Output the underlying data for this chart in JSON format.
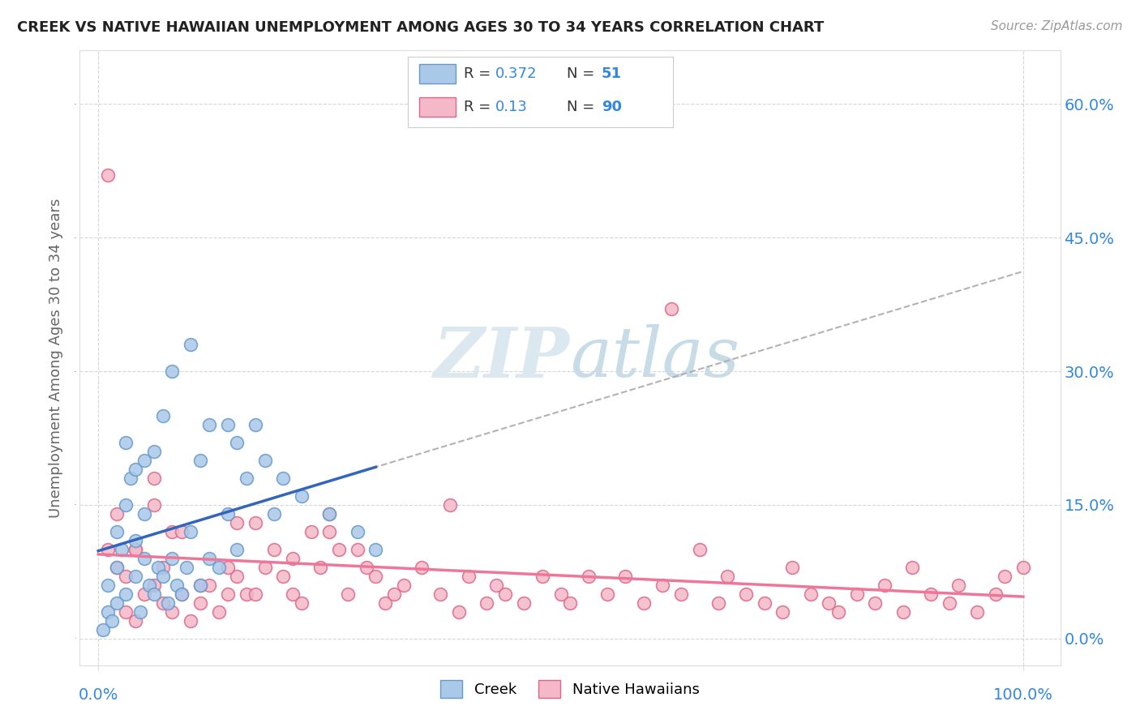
{
  "title": "CREEK VS NATIVE HAWAIIAN UNEMPLOYMENT AMONG AGES 30 TO 34 YEARS CORRELATION CHART",
  "source": "Source: ZipAtlas.com",
  "ylabel": "Unemployment Among Ages 30 to 34 years",
  "creek_color": "#aac8e8",
  "creek_edge": "#6699cc",
  "native_color": "#f4b8c8",
  "native_edge": "#dd6688",
  "creek_R": 0.372,
  "creek_N": 51,
  "native_R": 0.13,
  "native_N": 90,
  "creek_line_color": "#3366bb",
  "native_line_color": "#ee7799",
  "text_blue": "#3388dd",
  "watermark": "ZIPatlas",
  "y_ticks": [
    0,
    15,
    30,
    45,
    60
  ],
  "y_tick_labels": [
    "0.0%",
    "15.0%",
    "30.0%",
    "45.0%",
    "60.0%"
  ],
  "x_tick_labels": [
    "0.0%",
    "100.0%"
  ],
  "creek_x": [
    0.5,
    1,
    1,
    1.5,
    2,
    2,
    2,
    2.5,
    3,
    3,
    3,
    3.5,
    4,
    4,
    4,
    4.5,
    5,
    5,
    5,
    5.5,
    6,
    6,
    6.5,
    7,
    7,
    7.5,
    8,
    8,
    8.5,
    9,
    9.5,
    10,
    10,
    11,
    11,
    12,
    12,
    13,
    14,
    14,
    15,
    15,
    16,
    17,
    18,
    19,
    20,
    22,
    25,
    28,
    30
  ],
  "creek_y": [
    1,
    3,
    6,
    2,
    8,
    12,
    4,
    10,
    15,
    22,
    5,
    18,
    7,
    11,
    19,
    3,
    9,
    14,
    20,
    6,
    5,
    21,
    8,
    7,
    25,
    4,
    9,
    30,
    6,
    5,
    8,
    12,
    33,
    6,
    20,
    9,
    24,
    8,
    24,
    14,
    22,
    10,
    18,
    24,
    20,
    14,
    18,
    16,
    14,
    12,
    10
  ],
  "native_x": [
    1,
    1,
    2,
    3,
    3,
    4,
    4,
    5,
    6,
    6,
    7,
    8,
    8,
    9,
    10,
    11,
    12,
    13,
    14,
    15,
    15,
    16,
    17,
    18,
    19,
    20,
    21,
    22,
    23,
    24,
    25,
    26,
    27,
    28,
    29,
    30,
    31,
    32,
    33,
    35,
    37,
    38,
    39,
    40,
    42,
    43,
    44,
    46,
    48,
    50,
    51,
    53,
    55,
    57,
    59,
    61,
    62,
    63,
    65,
    67,
    68,
    70,
    72,
    74,
    75,
    77,
    79,
    80,
    82,
    84,
    85,
    87,
    88,
    90,
    92,
    93,
    95,
    97,
    98,
    100,
    2,
    4,
    6,
    7,
    9,
    11,
    14,
    17,
    21,
    25
  ],
  "native_y": [
    10,
    52,
    8,
    3,
    7,
    2,
    10,
    5,
    6,
    15,
    4,
    3,
    12,
    5,
    2,
    4,
    6,
    3,
    5,
    13,
    7,
    5,
    13,
    8,
    10,
    7,
    5,
    4,
    12,
    8,
    14,
    10,
    5,
    10,
    8,
    7,
    4,
    5,
    6,
    8,
    5,
    15,
    3,
    7,
    4,
    6,
    5,
    4,
    7,
    5,
    4,
    7,
    5,
    7,
    4,
    6,
    37,
    5,
    10,
    4,
    7,
    5,
    4,
    3,
    8,
    5,
    4,
    3,
    5,
    4,
    6,
    3,
    8,
    5,
    4,
    6,
    3,
    5,
    7,
    8,
    14,
    10,
    18,
    8,
    12,
    6,
    8,
    5,
    9,
    12
  ],
  "dashed_line_color": "#aaaaaa",
  "legend_R_label": "R = ",
  "legend_N_label": "N = "
}
